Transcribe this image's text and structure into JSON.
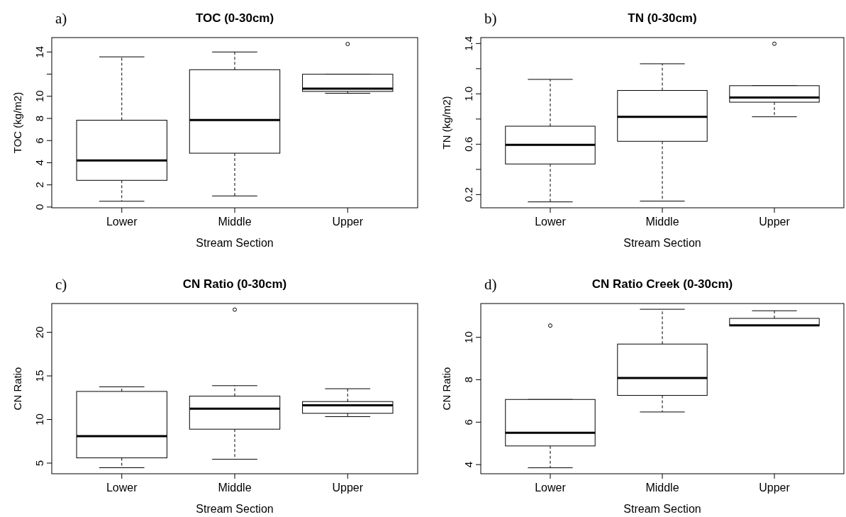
{
  "chart_data": [
    {
      "type": "box",
      "title": "TOC (0-30cm)",
      "xlabel": "Stream Section",
      "ylabel": "TOC (kg/m2)",
      "annotations": [
        "a)"
      ],
      "categories": [
        "Lower",
        "Middle",
        "Upper"
      ],
      "ylim": [
        -0.07,
        15.3
      ],
      "yticks": [
        0,
        2,
        4,
        6,
        8,
        10,
        {
          "value": 12,
          "label": null
        },
        14
      ],
      "boxes": [
        {
          "low": 0.52,
          "q1": 2.41,
          "median": 4.2,
          "q3": 7.84,
          "high": 13.56
        },
        {
          "low": 1.0,
          "q1": 4.86,
          "median": 7.86,
          "q3": 12.4,
          "high": 14.0
        },
        {
          "low": 10.27,
          "q1": 10.44,
          "median": 10.69,
          "q3": 11.99,
          "high": 11.99,
          "outliers": [
            14.72
          ]
        }
      ]
    },
    {
      "type": "box",
      "title": "TN (0-30cm)",
      "xlabel": "Stream Section",
      "ylabel": "TN (kg/m2)",
      "annotations": [
        "b)"
      ],
      "categories": [
        "Lower",
        "Middle",
        "Upper"
      ],
      "ylim": [
        0.095,
        1.447
      ],
      "yticks": [
        0.2,
        {
          "value": 0.4,
          "label": null
        },
        0.6,
        {
          "value": 0.8,
          "label": null
        },
        {
          "value": 1.0,
          "label": "1.0"
        },
        {
          "value": 1.2,
          "label": null
        },
        1.4
      ],
      "boxes": [
        {
          "low": 0.142,
          "q1": 0.443,
          "median": 0.595,
          "q3": 0.743,
          "high": 1.115
        },
        {
          "low": 0.148,
          "q1": 0.623,
          "median": 0.818,
          "q3": 1.027,
          "high": 1.239
        },
        {
          "low": 0.818,
          "q1": 0.934,
          "median": 0.971,
          "q3": 1.065,
          "high": 1.065,
          "outliers": [
            1.398
          ]
        }
      ]
    },
    {
      "type": "box",
      "title": "CN Ratio (0-30cm)",
      "xlabel": "Stream Section",
      "ylabel": "CN Ratio",
      "annotations": [
        "c)"
      ],
      "categories": [
        "Lower",
        "Middle",
        "Upper"
      ],
      "ylim": [
        3.78,
        23.3
      ],
      "yticks": [
        5,
        10,
        15,
        20
      ],
      "boxes": [
        {
          "low": 4.47,
          "q1": 5.6,
          "median": 8.1,
          "q3": 13.22,
          "high": 13.75
        },
        {
          "low": 5.44,
          "q1": 8.89,
          "median": 11.24,
          "q3": 12.68,
          "high": 13.88,
          "outliers": [
            22.6
          ]
        },
        {
          "low": 10.33,
          "q1": 10.71,
          "median": 11.62,
          "q3": 12.06,
          "high": 13.53
        }
      ]
    },
    {
      "type": "box",
      "title": "CN Ratio Creek (0-30cm)",
      "xlabel": "Stream Section",
      "ylabel": "CN Ratio",
      "annotations": [
        "d)"
      ],
      "categories": [
        "Lower",
        "Middle",
        "Upper"
      ],
      "ylim": [
        3.57,
        11.59
      ],
      "yticks": [
        4,
        6,
        8,
        10
      ],
      "boxes": [
        {
          "low": 3.85,
          "q1": 4.88,
          "median": 5.5,
          "q3": 7.07,
          "high": 7.07,
          "outliers": [
            10.55
          ]
        },
        {
          "low": 6.48,
          "q1": 7.26,
          "median": 8.08,
          "q3": 9.68,
          "high": 11.32
        },
        {
          "low": 10.54,
          "q1": 10.54,
          "median": 10.56,
          "q3": 10.89,
          "high": 11.25
        }
      ]
    }
  ]
}
